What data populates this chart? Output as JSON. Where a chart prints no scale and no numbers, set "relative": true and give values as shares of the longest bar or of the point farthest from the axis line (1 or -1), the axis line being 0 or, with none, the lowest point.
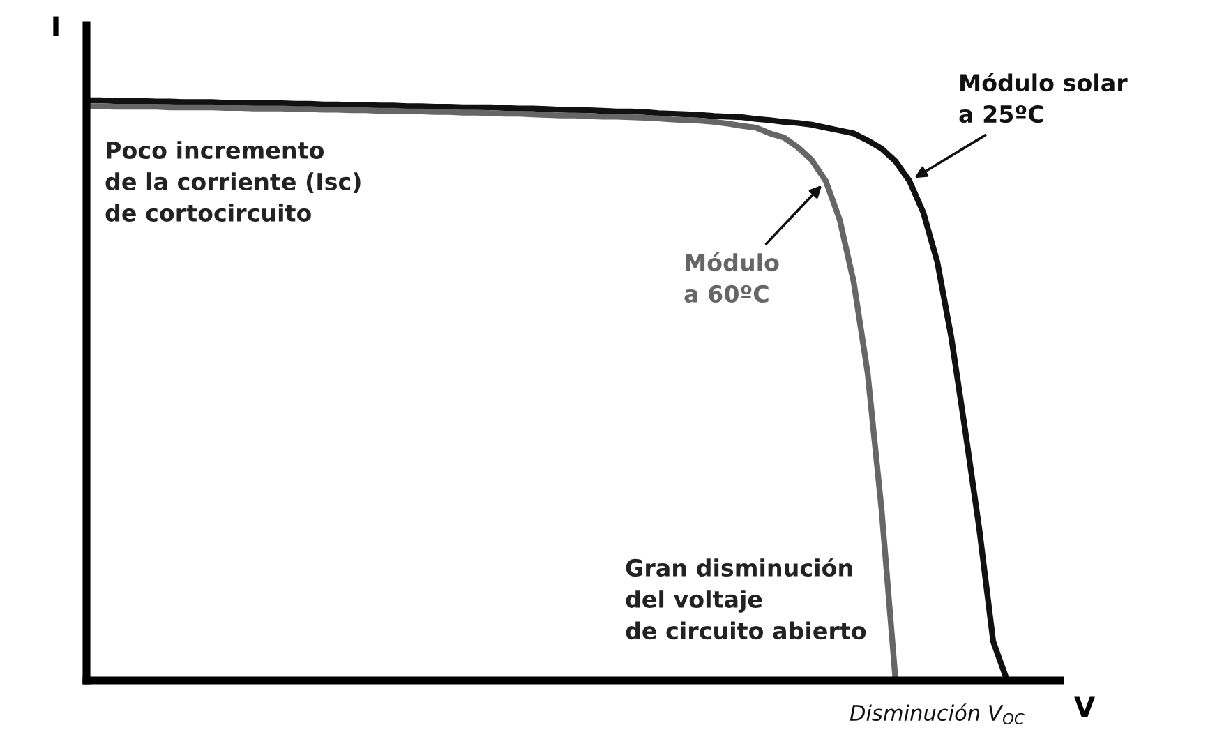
{
  "chart_data": {
    "type": "line",
    "relative": true,
    "xlabel": "V",
    "ylabel": "I",
    "marker": "none",
    "line_style": "solid",
    "categories": [
      null,
      null,
      null,
      null,
      null,
      null,
      null,
      null,
      null,
      null,
      null,
      null,
      null,
      null,
      null,
      null,
      null,
      null,
      null,
      null,
      null,
      null,
      null,
      null,
      null,
      null,
      null,
      null,
      null,
      null,
      null,
      null,
      null,
      null,
      null,
      null,
      null,
      null,
      null,
      null,
      null,
      null,
      null,
      null,
      null,
      null,
      null,
      null,
      null,
      null,
      null,
      null,
      null,
      null,
      null,
      null,
      null,
      null,
      null,
      null,
      null,
      null,
      null,
      null,
      null,
      null,
      null
    ],
    "series": [
      {
        "name": "Módulo solar\na 25ºC",
        "color": "#111111",
        "values": [
          1.0,
          1.0,
          0.999,
          0.999,
          0.999,
          0.998,
          0.998,
          0.997,
          0.997,
          0.997,
          0.996,
          0.996,
          0.995,
          0.995,
          0.995,
          0.994,
          0.994,
          0.993,
          0.993,
          0.992,
          0.992,
          0.991,
          0.991,
          0.99,
          0.99,
          0.989,
          0.989,
          0.988,
          0.988,
          0.988,
          0.987,
          0.986,
          0.986,
          0.985,
          0.984,
          0.983,
          0.983,
          0.982,
          0.981,
          0.981,
          0.98,
          0.978,
          0.977,
          0.976,
          0.975,
          0.973,
          0.972,
          0.971,
          0.968,
          0.966,
          0.963,
          0.961,
          0.958,
          0.953,
          0.948,
          0.943,
          0.931,
          0.917,
          0.895,
          0.861,
          0.806,
          0.721,
          0.591,
          0.43,
          0.262,
          0.067,
          0
        ]
      },
      {
        "name": "Módulo\na 60ºC",
        "color": "#666666",
        "values": [
          0.99,
          0.99,
          0.989,
          0.989,
          0.989,
          0.989,
          0.988,
          0.988,
          0.988,
          0.988,
          0.987,
          0.987,
          0.986,
          0.986,
          0.986,
          0.985,
          0.985,
          0.984,
          0.984,
          0.983,
          0.983,
          0.982,
          0.982,
          0.981,
          0.981,
          0.98,
          0.98,
          0.979,
          0.979,
          0.978,
          0.977,
          0.977,
          0.976,
          0.975,
          0.974,
          0.974,
          0.973,
          0.972,
          0.972,
          0.971,
          0.97,
          0.969,
          0.967,
          0.966,
          0.965,
          0.963,
          0.96,
          0.956,
          0.953,
          0.943,
          0.936,
          0.919,
          0.897,
          0.861,
          0.794,
          0.687,
          0.53,
          0.294,
          0,
          null,
          null,
          null,
          null,
          null,
          null,
          null,
          null
        ]
      }
    ],
    "annotations": [
      "Poco incremento\nde la corriente (Isc)\nde cortocircuito",
      "Gran disminución\ndel voltaje\nde circuito abierto",
      "Disminución V$_{OC}$"
    ]
  }
}
